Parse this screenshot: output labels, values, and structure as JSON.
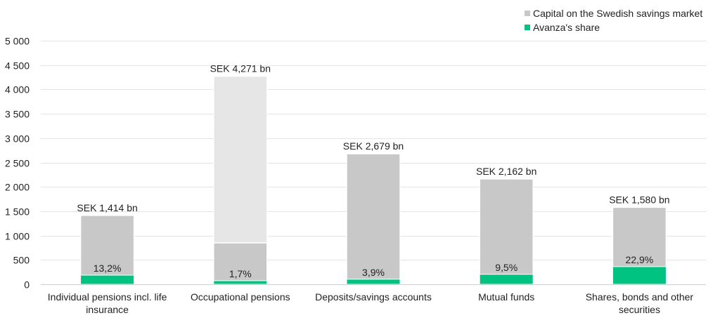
{
  "chart_data": {
    "type": "bar",
    "title": "",
    "xlabel": "",
    "ylabel": "",
    "ylim": [
      0,
      5000
    ],
    "yticks": [
      "0",
      "500",
      "1 000",
      "1 500",
      "2 000",
      "2 500",
      "3 000",
      "3 500",
      "4 000",
      "4 500",
      "5 000"
    ],
    "grid": true,
    "legend_position": "top-right",
    "categories": [
      [
        "Individual pensions incl. life",
        "insurance"
      ],
      [
        "Occupational pensions"
      ],
      [
        "Deposits/savings accounts"
      ],
      [
        "Mutual funds"
      ],
      [
        "Shares, bonds and other",
        "securities"
      ]
    ],
    "series": [
      {
        "name": "Capital on the Swedish savings market",
        "color": "#c8c8c8",
        "values": [
          1414,
          4271,
          2679,
          2162,
          1580
        ],
        "labels": [
          "SEK 1,414 bn",
          "SEK 4,271 bn",
          "SEK 2,679 bn",
          "SEK 2,162 bn",
          "SEK 1,580 bn"
        ]
      },
      {
        "name": "Avanza's share",
        "color": "#00c281",
        "values": [
          187,
          73,
          104,
          205,
          362
        ],
        "labels": [
          "13,2%",
          "1,7%",
          "3,9%",
          "9,5%",
          "22,9%"
        ]
      }
    ],
    "extra_segment": {
      "category_index": 1,
      "value": 850,
      "color": "#c8c8c8",
      "upper_color": "#e6e6e6"
    }
  }
}
